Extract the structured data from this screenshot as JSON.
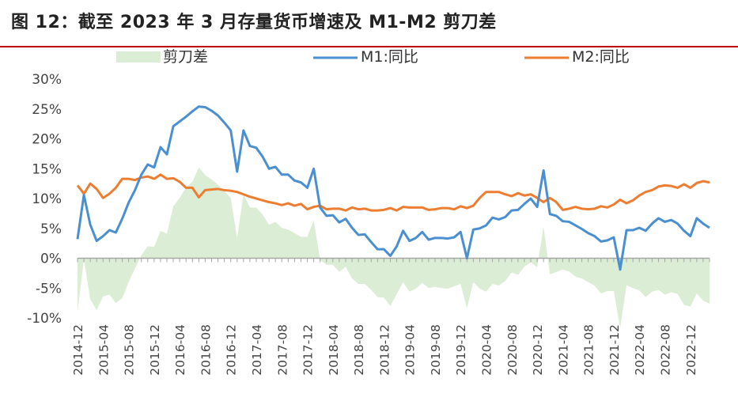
{
  "figure": {
    "title": "图 12：截至 2023 年 3 月存量货币增速及 M1-M2 剪刀差"
  },
  "colors": {
    "m1": "#4a8fd0",
    "m2": "#ed7d31",
    "spread": "#dcedd5",
    "axis": "#a6a6a6",
    "title_rule": "#c00000"
  },
  "chart_data": {
    "type": "line",
    "title": "图 12：截至 2023 年 3 月存量货币增速及 M1-M2 剪刀差",
    "xlabel": "",
    "ylabel": "",
    "ylim": [
      -10,
      30
    ],
    "yticks": [
      "30%",
      "25%",
      "20%",
      "15%",
      "10%",
      "5%",
      "0%",
      "-5%",
      "-10%"
    ],
    "ytick_values": [
      30,
      25,
      20,
      15,
      10,
      5,
      0,
      -5,
      -10
    ],
    "xtick_labels": [
      "2014-12",
      "2015-04",
      "2015-08",
      "2015-12",
      "2016-04",
      "2016-08",
      "2016-12",
      "2017-04",
      "2017-08",
      "2017-12",
      "2018-04",
      "2018-08",
      "2018-12",
      "2019-04",
      "2019-08",
      "2019-12",
      "2020-04",
      "2020-08",
      "2020-12",
      "2021-04",
      "2021-08",
      "2021-12",
      "2022-04",
      "2022-08",
      "2022-12"
    ],
    "xtick_every": 4,
    "legend": [
      "剪刀差",
      "M1:同比",
      "M2:同比"
    ],
    "legend_position": "top",
    "categories": [
      "2014-12",
      "2015-01",
      "2015-02",
      "2015-03",
      "2015-04",
      "2015-05",
      "2015-06",
      "2015-07",
      "2015-08",
      "2015-09",
      "2015-10",
      "2015-11",
      "2015-12",
      "2016-01",
      "2016-02",
      "2016-03",
      "2016-04",
      "2016-05",
      "2016-06",
      "2016-07",
      "2016-08",
      "2016-09",
      "2016-10",
      "2016-11",
      "2016-12",
      "2017-01",
      "2017-02",
      "2017-03",
      "2017-04",
      "2017-05",
      "2017-06",
      "2017-07",
      "2017-08",
      "2017-09",
      "2017-10",
      "2017-11",
      "2017-12",
      "2018-01",
      "2018-02",
      "2018-03",
      "2018-04",
      "2018-05",
      "2018-06",
      "2018-07",
      "2018-08",
      "2018-09",
      "2018-10",
      "2018-11",
      "2018-12",
      "2019-01",
      "2019-02",
      "2019-03",
      "2019-04",
      "2019-05",
      "2019-06",
      "2019-07",
      "2019-08",
      "2019-09",
      "2019-10",
      "2019-11",
      "2019-12",
      "2020-01",
      "2020-02",
      "2020-03",
      "2020-04",
      "2020-05",
      "2020-06",
      "2020-07",
      "2020-08",
      "2020-09",
      "2020-10",
      "2020-11",
      "2020-12",
      "2021-01",
      "2021-02",
      "2021-03",
      "2021-04",
      "2021-05",
      "2021-06",
      "2021-07",
      "2021-08",
      "2021-09",
      "2021-10",
      "2021-11",
      "2021-12",
      "2022-01",
      "2022-02",
      "2022-03",
      "2022-04",
      "2022-05",
      "2022-06",
      "2022-07",
      "2022-08",
      "2022-09",
      "2022-10",
      "2022-11",
      "2022-12",
      "2023-01",
      "2023-02",
      "2023-03"
    ],
    "series": [
      {
        "name": "M1:同比",
        "values": [
          3.2,
          10.6,
          5.6,
          2.9,
          3.7,
          4.7,
          4.3,
          6.6,
          9.3,
          11.4,
          14.0,
          15.7,
          15.2,
          18.6,
          17.4,
          22.1,
          22.9,
          23.7,
          24.6,
          25.4,
          25.3,
          24.7,
          23.9,
          22.7,
          21.4,
          14.5,
          21.4,
          18.8,
          18.5,
          17.0,
          15.0,
          15.3,
          14.0,
          14.0,
          13.0,
          12.7,
          11.8,
          15.0,
          8.5,
          7.1,
          7.2,
          6.0,
          6.6,
          5.1,
          3.9,
          4.0,
          2.7,
          1.5,
          1.5,
          0.4,
          2.0,
          4.6,
          2.9,
          3.4,
          4.4,
          3.1,
          3.4,
          3.4,
          3.3,
          3.5,
          4.4,
          0.0,
          4.8,
          5.0,
          5.5,
          6.8,
          6.5,
          6.9,
          8.0,
          8.1,
          9.1,
          10.0,
          8.6,
          14.7,
          7.4,
          7.1,
          6.2,
          6.1,
          5.5,
          4.9,
          4.2,
          3.7,
          2.8,
          3.0,
          3.5,
          -1.9,
          4.7,
          4.7,
          5.1,
          4.6,
          5.8,
          6.7,
          6.1,
          6.4,
          5.8,
          4.6,
          3.7,
          6.7,
          5.8,
          5.1
        ]
      },
      {
        "name": "M2:同比",
        "values": [
          12.2,
          10.8,
          12.5,
          11.6,
          10.1,
          10.8,
          11.8,
          13.3,
          13.3,
          13.1,
          13.5,
          13.7,
          13.3,
          14.0,
          13.3,
          13.4,
          12.8,
          11.8,
          11.8,
          10.2,
          11.4,
          11.5,
          11.6,
          11.4,
          11.3,
          11.1,
          10.7,
          10.3,
          10.0,
          9.7,
          9.4,
          9.2,
          8.9,
          9.2,
          8.8,
          9.1,
          8.2,
          8.6,
          8.8,
          8.2,
          8.3,
          8.3,
          8.0,
          8.5,
          8.2,
          8.3,
          8.0,
          8.0,
          8.1,
          8.4,
          8.0,
          8.6,
          8.5,
          8.5,
          8.5,
          8.1,
          8.2,
          8.4,
          8.4,
          8.2,
          8.7,
          8.4,
          8.8,
          10.1,
          11.1,
          11.1,
          11.1,
          10.7,
          10.4,
          10.9,
          10.5,
          10.7,
          10.1,
          9.4,
          10.1,
          9.4,
          8.1,
          8.3,
          8.6,
          8.3,
          8.2,
          8.3,
          8.7,
          8.5,
          9.0,
          9.8,
          9.2,
          9.7,
          10.5,
          11.1,
          11.4,
          12.0,
          12.2,
          12.1,
          11.8,
          12.4,
          11.8,
          12.6,
          12.9,
          12.7
        ]
      },
      {
        "name": "剪刀差",
        "values": [
          -9.0,
          -0.2,
          -6.9,
          -8.7,
          -6.4,
          -6.1,
          -7.5,
          -6.7,
          -4.0,
          -1.7,
          0.5,
          2.0,
          1.9,
          4.6,
          4.1,
          8.7,
          10.1,
          11.9,
          12.8,
          15.2,
          13.9,
          13.2,
          12.3,
          11.3,
          10.1,
          3.4,
          10.7,
          8.5,
          8.5,
          7.3,
          5.6,
          6.1,
          5.1,
          4.8,
          4.2,
          3.6,
          3.6,
          6.4,
          -0.3,
          -1.1,
          -1.1,
          -2.3,
          -1.4,
          -3.4,
          -4.3,
          -4.3,
          -5.3,
          -6.5,
          -6.6,
          -8.0,
          -6.0,
          -4.0,
          -5.6,
          -5.1,
          -4.1,
          -5.0,
          -4.8,
          -5.0,
          -5.1,
          -4.7,
          -4.3,
          -8.4,
          -4.0,
          -5.1,
          -5.6,
          -4.3,
          -4.6,
          -3.8,
          -2.4,
          -2.8,
          -1.4,
          -0.7,
          -1.5,
          5.3,
          -2.7,
          -2.3,
          -1.9,
          -2.2,
          -3.1,
          -3.4,
          -4.0,
          -4.6,
          -5.9,
          -5.5,
          -5.5,
          -11.7,
          -4.5,
          -5.0,
          -5.4,
          -6.5,
          -5.6,
          -5.3,
          -6.1,
          -5.7,
          -6.0,
          -7.8,
          -8.1,
          -5.9,
          -7.1,
          -7.6
        ]
      }
    ]
  }
}
